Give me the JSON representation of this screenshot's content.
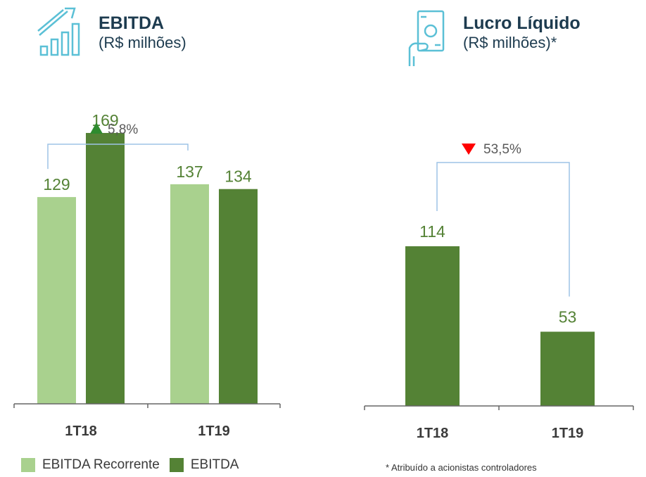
{
  "ebitda_panel": {
    "title": "EBITDA",
    "subtitle": "(R$ milhões)"
  },
  "lucro_panel": {
    "title": "Lucro Líquido",
    "subtitle": "(R$ milhões)*"
  },
  "footnote": "* Atribuído a acionistas controladores",
  "colors": {
    "light_green": "#a9d18e",
    "dark_green": "#548235",
    "label_green": "#548235",
    "bracket": "#9dc3e6",
    "up_arrow": "#2e8b2e",
    "down_arrow": "#ff0000",
    "icon": "#5bc0d6"
  },
  "icons": {
    "ebitda": "growth-chart-icon",
    "lucro": "hand-holding-money-icon"
  },
  "chart_data": [
    {
      "type": "bar",
      "title": "EBITDA",
      "subtitle": "(R$ milhões)",
      "categories": [
        "1T18",
        "1T19"
      ],
      "series": [
        {
          "name": "EBITDA Recorrente",
          "values": [
            129,
            137
          ]
        },
        {
          "name": "EBITDA",
          "values": [
            169,
            134
          ]
        }
      ],
      "ylim": [
        0,
        230
      ],
      "annotation": {
        "text": "5,8%",
        "direction": "up",
        "from": "1T18 EBITDA Recorrente",
        "to": "1T19 EBITDA Recorrente"
      },
      "legend_position": "bottom-left"
    },
    {
      "type": "bar",
      "title": "Lucro Líquido",
      "subtitle": "(R$ milhões)*",
      "categories": [
        "1T18",
        "1T19"
      ],
      "values": [
        114,
        53
      ],
      "ylim": [
        0,
        180
      ],
      "annotation": {
        "text": "53,5%",
        "direction": "down",
        "from": "1T18",
        "to": "1T19"
      }
    }
  ]
}
